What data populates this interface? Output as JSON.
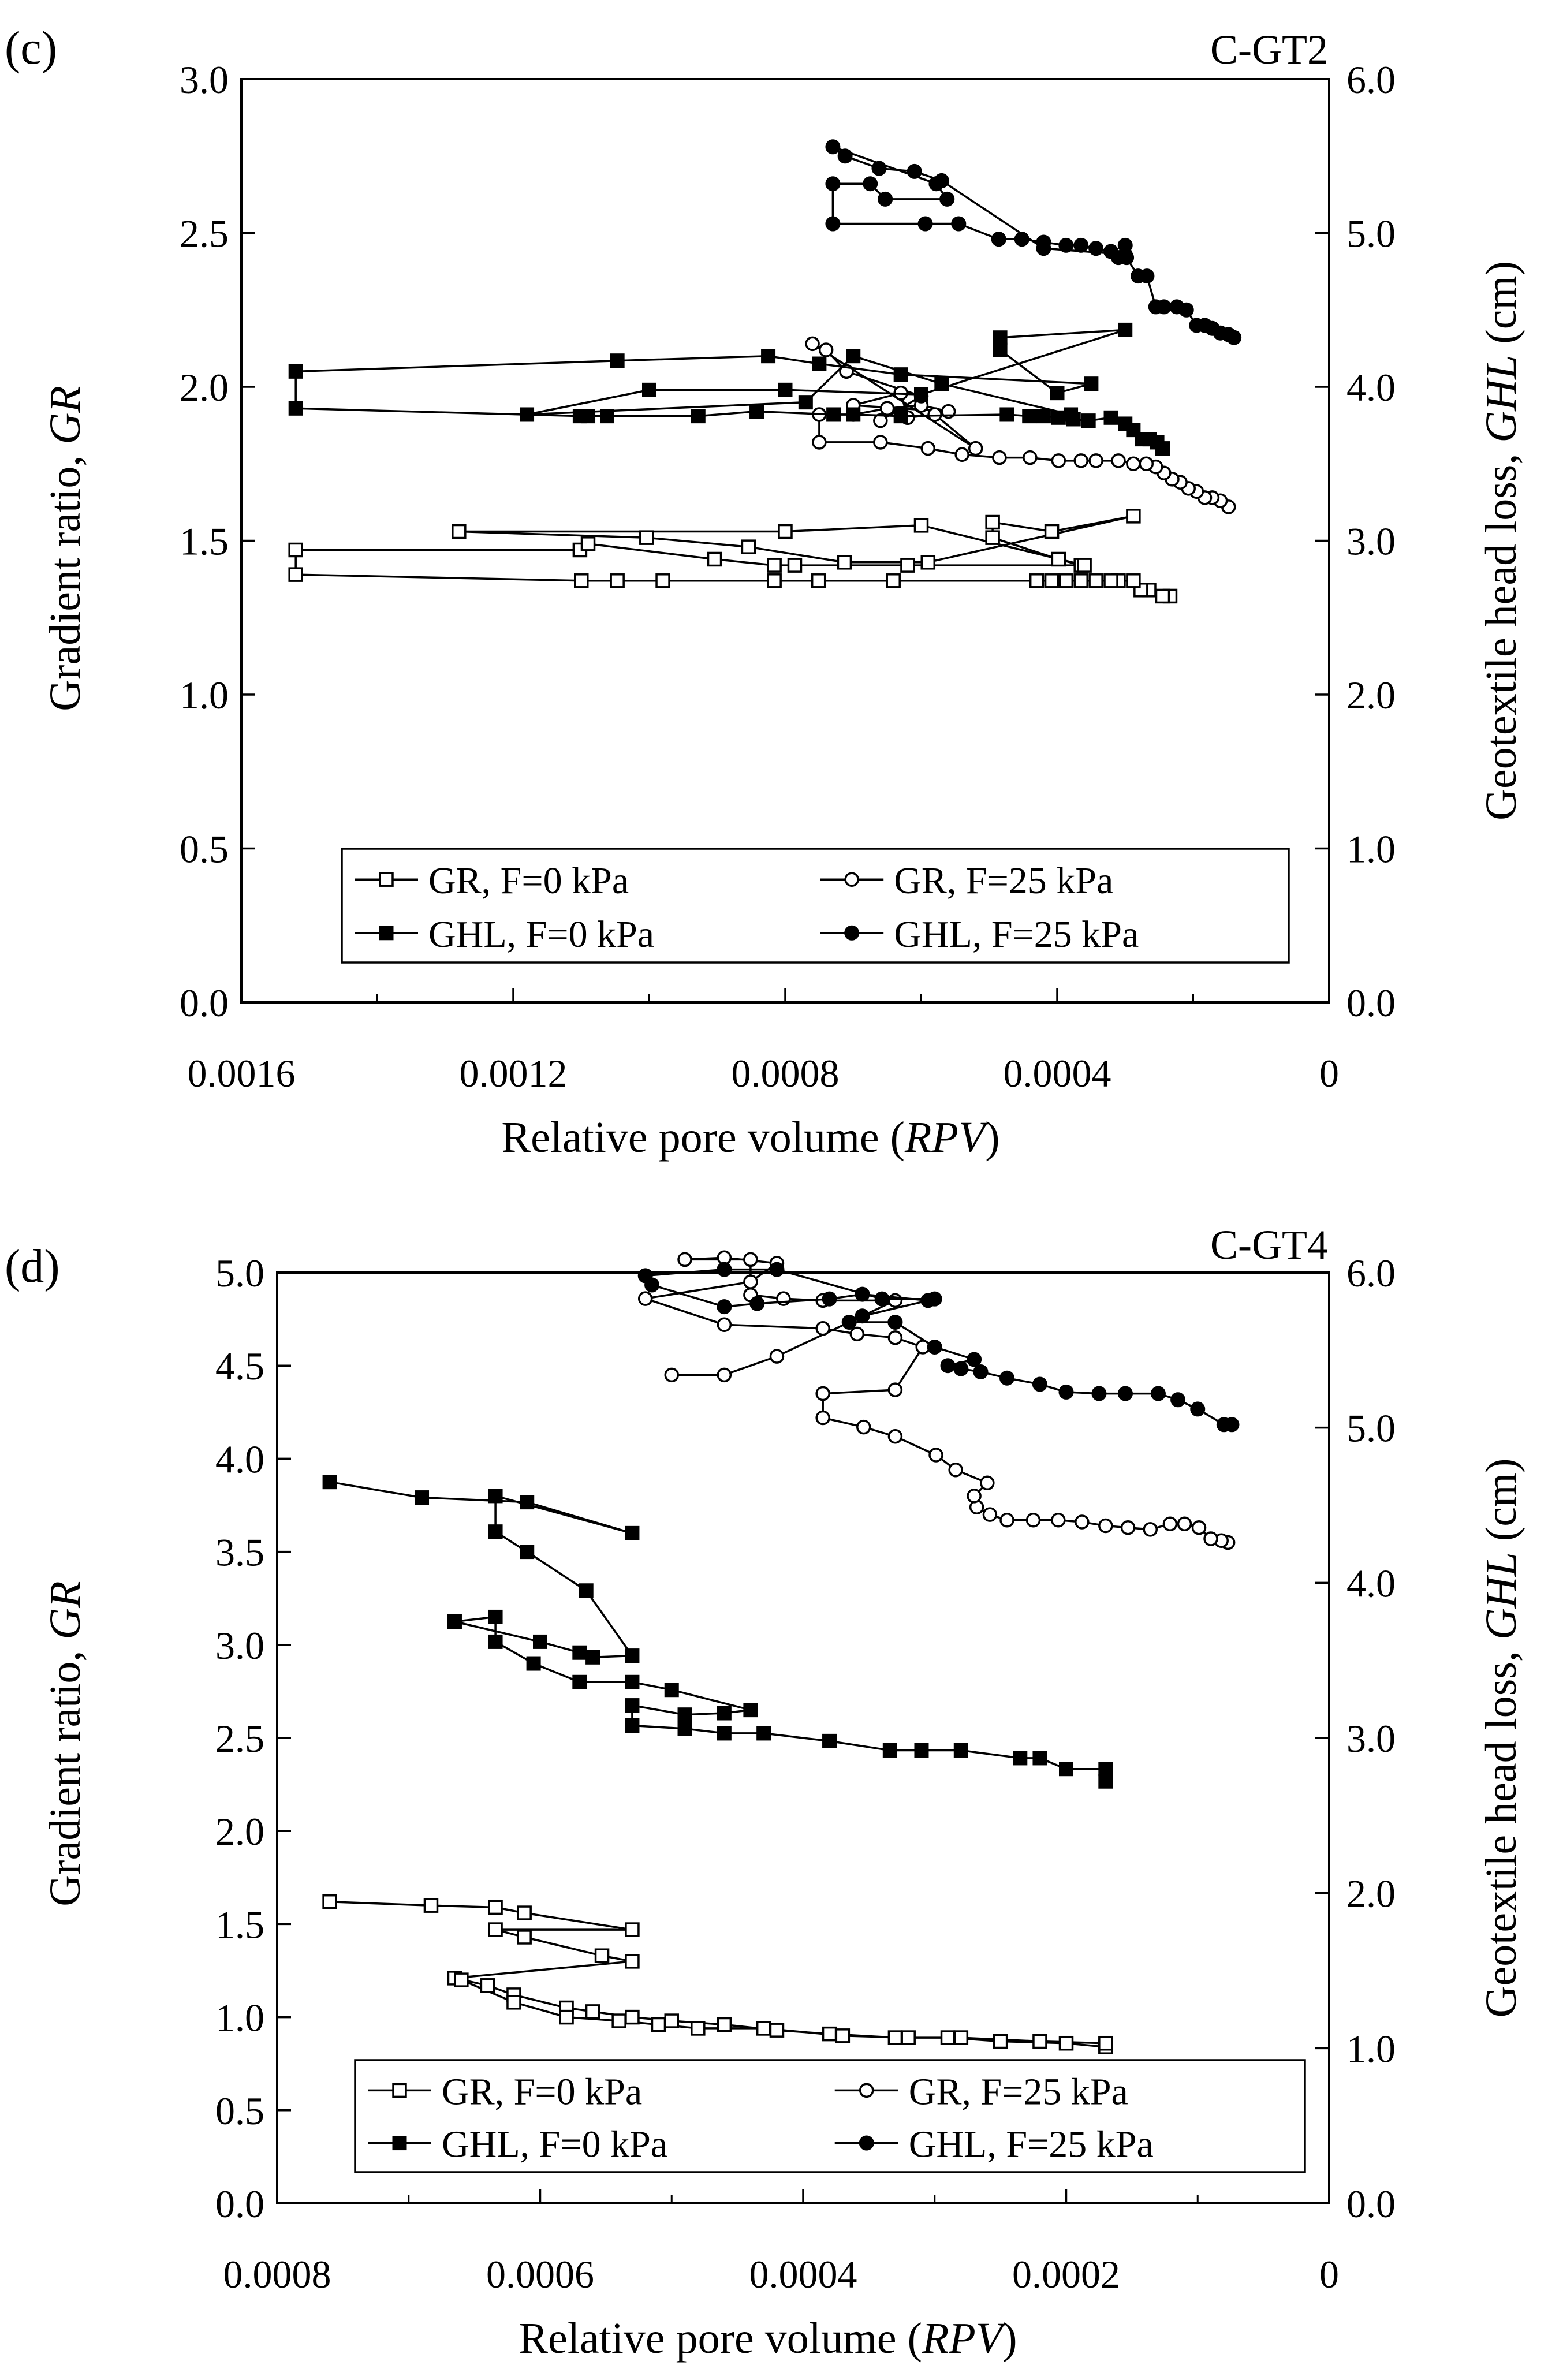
{
  "chart_data": [
    {
      "panel_label": "(c)",
      "type": "line",
      "specimen": "C-GT2",
      "xlabel_main": "Relative pore volume (",
      "xlabel_italic": "RPV",
      "xlabel_close": ")",
      "ylabel_main": "Gradient ratio, ",
      "ylabel_italic": "GR",
      "y2label_main": "Geotextile head loss, ",
      "y2label_italic": "GHL",
      "y2label_unit": " (cm)",
      "xlim": [
        0.0016,
        0
      ],
      "ylim": [
        0,
        3.0
      ],
      "y2lim": [
        0,
        6.0
      ],
      "x_ticks": [
        "0.0016",
        "0.0012",
        "0.0008",
        "0.0004",
        "0"
      ],
      "x_tick_values": [
        0.0016,
        0.0012,
        0.0008,
        0.0004,
        0
      ],
      "y_ticks": [
        "0.0",
        "0.5",
        "1.0",
        "1.5",
        "2.0",
        "2.5",
        "3.0"
      ],
      "y_tick_values": [
        0,
        0.5,
        1.0,
        1.5,
        2.0,
        2.5,
        3.0
      ],
      "y2_ticks": [
        "0.0",
        "1.0",
        "2.0",
        "3.0",
        "4.0",
        "5.0",
        "6.0"
      ],
      "y2_tick_values": [
        0,
        1.0,
        2.0,
        3.0,
        4.0,
        5.0,
        6.0
      ],
      "legend": [
        "GR, F=0 kPa",
        "GR, F=25 kPa",
        "GHL, F=0 kPa",
        "GHL, F=25 kPa"
      ],
      "series": [
        {
          "name": "GR, F=0 kPa",
          "axis": "left",
          "marker": "square-open",
          "x": [
            0.000234,
            0.000245,
            0.000265,
            0.000277,
            0.000288,
            0.00031,
            0.000321,
            0.000343,
            0.000365,
            0.000387,
            0.000408,
            0.00043,
            0.000641,
            0.000751,
            0.000816,
            0.00098,
            0.001047,
            0.0011,
            0.00152,
            0.00152,
            0.001102,
            0.00109,
            0.000904,
            0.000816,
            0.000786,
            0.00062,
            0.000365,
            0.000398,
            0.000495,
            0.000495,
            0.000408,
            0.000288,
            0.00059,
            0.000713,
            0.000854,
            0.001004,
            0.00128,
            0.0008,
            0.0006,
            0.00036
          ],
          "y": [
            1.32,
            1.32,
            1.34,
            1.34,
            1.37,
            1.37,
            1.37,
            1.37,
            1.37,
            1.37,
            1.37,
            1.37,
            1.37,
            1.37,
            1.37,
            1.37,
            1.37,
            1.37,
            1.39,
            1.47,
            1.47,
            1.49,
            1.44,
            1.42,
            1.42,
            1.42,
            1.42,
            1.44,
            1.51,
            1.56,
            1.53,
            1.58,
            1.43,
            1.43,
            1.48,
            1.51,
            1.53,
            1.53,
            1.55,
            1.42
          ]
        },
        {
          "name": "GR, F=25 kPa",
          "axis": "left",
          "marker": "circle-open",
          "x": [
            0.000148,
            0.00016,
            0.000172,
            0.000183,
            0.000195,
            0.000207,
            0.000219,
            0.000231,
            0.000243,
            0.000255,
            0.000269,
            0.000288,
            0.00031,
            0.000343,
            0.000365,
            0.000398,
            0.00044,
            0.000485,
            0.00054,
            0.00059,
            0.00066,
            0.00075,
            0.00075,
            0.0007,
            0.00065,
            0.0006,
            0.00056,
            0.0007,
            0.00063,
            0.00062,
            0.00058,
            0.00052,
            0.00076,
            0.00074,
            0.00071,
            0.0006,
            0.00066
          ],
          "y": [
            1.61,
            1.63,
            1.64,
            1.64,
            1.66,
            1.67,
            1.69,
            1.7,
            1.72,
            1.74,
            1.75,
            1.75,
            1.76,
            1.76,
            1.76,
            1.76,
            1.77,
            1.77,
            1.78,
            1.8,
            1.82,
            1.82,
            1.91,
            1.91,
            1.93,
            1.94,
            1.92,
            1.94,
            1.98,
            1.9,
            1.91,
            1.8,
            2.14,
            2.12,
            2.05,
            1.97,
            1.89
          ]
        },
        {
          "name": "GHL, F=0 kPa",
          "axis": "right",
          "marker": "square-filled",
          "x": [
            0.000245,
            0.000253,
            0.000264,
            0.000275,
            0.000288,
            0.0003,
            0.000321,
            0.000354,
            0.000376,
            0.000398,
            0.00042,
            0.000441,
            0.000474,
            0.00063,
            0.0007,
            0.000729,
            0.000842,
            0.000928,
            0.001062,
            0.00109,
            0.001102,
            0.00152,
            0.00152,
            0.001047,
            0.000825,
            0.00075,
            0.00063,
            0.00035,
            0.0004,
            0.000484,
            0.000484,
            0.0003,
            0.0006,
            0.0008,
            0.001,
            0.00118,
            0.00077,
            0.0007,
            0.00057,
            0.00038
          ],
          "y": [
            3.6,
            3.64,
            3.66,
            3.66,
            3.72,
            3.76,
            3.8,
            3.78,
            3.79,
            3.8,
            3.81,
            3.81,
            3.82,
            3.81,
            3.82,
            3.82,
            3.84,
            3.81,
            3.81,
            3.81,
            3.81,
            3.86,
            4.1,
            4.17,
            4.2,
            4.15,
            4.08,
            4.02,
            3.96,
            4.24,
            4.32,
            4.37,
            3.95,
            3.98,
            3.98,
            3.82,
            3.9,
            4.2,
            4.02,
            3.82
          ]
        },
        {
          "name": "GHL, F=25 kPa",
          "axis": "right",
          "marker": "circle-filled",
          "x": [
            0.00014,
            0.000148,
            0.00016,
            0.000172,
            0.000183,
            0.000195,
            0.00021,
            0.000224,
            0.000243,
            0.000255,
            0.000268,
            0.000281,
            0.000298,
            0.00031,
            0.000321,
            0.000343,
            0.000365,
            0.000387,
            0.00042,
            0.000452,
            0.000486,
            0.000545,
            0.000594,
            0.00073,
            0.00073,
            0.000675,
            0.000653,
            0.000562,
            0.000578,
            0.00073,
            0.000712,
            0.000662,
            0.00061,
            0.00057,
            0.00042,
            0.0003,
            0.0003
          ],
          "y": [
            4.32,
            4.34,
            4.35,
            4.38,
            4.4,
            4.4,
            4.5,
            4.52,
            4.52,
            4.52,
            4.72,
            4.72,
            4.84,
            4.84,
            4.88,
            4.9,
            4.92,
            4.92,
            4.94,
            4.96,
            4.96,
            5.06,
            5.06,
            5.06,
            5.32,
            5.32,
            5.22,
            5.22,
            5.32,
            5.56,
            5.5,
            5.42,
            5.4,
            5.34,
            4.9,
            4.86,
            4.92
          ]
        }
      ]
    },
    {
      "panel_label": "(d)",
      "type": "line",
      "specimen": "C-GT4",
      "xlabel_main": "Relative pore volume (",
      "xlabel_italic": "RPV",
      "xlabel_close": ")",
      "ylabel_main": "Gradient ratio, ",
      "ylabel_italic": "GR",
      "y2label_main": "Geotextile head loss, ",
      "y2label_italic": "GHL",
      "y2label_unit": " (cm)",
      "xlim": [
        0.0008,
        0
      ],
      "ylim": [
        0,
        5.0
      ],
      "y2lim": [
        0,
        6.0
      ],
      "x_ticks": [
        "0.0008",
        "0.0006",
        "0.0004",
        "0.0002",
        "0"
      ],
      "x_tick_values": [
        0.0008,
        0.0006,
        0.0004,
        0.0002,
        0
      ],
      "y_ticks": [
        "0.0",
        "0.5",
        "1.0",
        "1.5",
        "2.0",
        "2.5",
        "3.0",
        "3.5",
        "4.0",
        "4.5",
        "5.0"
      ],
      "y_tick_values": [
        0,
        0.5,
        1.0,
        1.5,
        2.0,
        2.5,
        3.0,
        3.5,
        4.0,
        4.5,
        5.0
      ],
      "y2_ticks": [
        "0.0",
        "1.0",
        "2.0",
        "3.0",
        "4.0",
        "5.0",
        "6.0"
      ],
      "y2_tick_values": [
        0,
        1.0,
        2.0,
        3.0,
        4.0,
        5.0,
        6.0
      ],
      "legend": [
        "GR, F=0 kPa",
        "GR, F=25 kPa",
        "GHL, F=0 kPa",
        "GHL, F=25 kPa"
      ],
      "series": [
        {
          "name": "GR, F=0 kPa",
          "axis": "left",
          "marker": "square-open",
          "x": [
            0.00076,
            0.000683,
            0.000634,
            0.000612,
            0.00053,
            0.000634,
            0.000612,
            0.000553,
            0.00053,
            0.000665,
            0.00064,
            0.00062,
            0.00058,
            0.00056,
            0.00053,
            0.0005,
            0.00046,
            0.00042,
            0.00038,
            0.00033,
            0.00029,
            0.00025,
            0.0002,
            0.00017,
            0.00017,
            0.00022,
            0.00028,
            0.00032,
            0.00037,
            0.00043,
            0.00048,
            0.00051,
            0.00054,
            0.00058,
            0.00062,
            0.00066
          ],
          "y": [
            1.62,
            1.6,
            1.59,
            1.56,
            1.47,
            1.47,
            1.43,
            1.33,
            1.3,
            1.21,
            1.17,
            1.12,
            1.05,
            1.03,
            1.0,
            0.98,
            0.96,
            0.93,
            0.91,
            0.89,
            0.89,
            0.87,
            0.86,
            0.84,
            0.86,
            0.87,
            0.89,
            0.89,
            0.9,
            0.94,
            0.94,
            0.96,
            0.98,
            1.0,
            1.08,
            1.2
          ]
        },
        {
          "name": "GR, F=25 kPa",
          "axis": "left",
          "marker": "circle-open",
          "x": [
            7.7e-05,
            8.2e-05,
            9e-05,
            9.9e-05,
            0.00011,
            0.000121,
            0.000136,
            0.000153,
            0.00017,
            0.000188,
            0.000206,
            0.000225,
            0.000245,
            0.000258,
            0.000268,
            0.00027,
            0.00026,
            0.000284,
            0.000299,
            0.00033,
            0.000354,
            0.000385,
            0.000385,
            0.00033,
            0.000309,
            0.00033,
            0.000359,
            0.000385,
            0.00046,
            0.00052,
            0.00044,
            0.00042,
            0.00046,
            0.00049,
            0.00044,
            0.00044,
            0.000415,
            0.000385,
            0.00033,
            0.00042,
            0.00046,
            0.0005
          ],
          "y": [
            3.55,
            3.56,
            3.57,
            3.63,
            3.65,
            3.65,
            3.62,
            3.63,
            3.64,
            3.66,
            3.67,
            3.67,
            3.67,
            3.7,
            3.74,
            3.8,
            3.87,
            3.94,
            4.02,
            4.12,
            4.17,
            4.22,
            4.35,
            4.37,
            4.6,
            4.65,
            4.67,
            4.7,
            4.72,
            4.86,
            4.95,
            5.05,
            5.08,
            5.07,
            5.07,
            4.88,
            4.86,
            4.85,
            4.85,
            4.55,
            4.45,
            4.45
          ]
        },
        {
          "name": "GHL, F=0 kPa",
          "axis": "right",
          "marker": "square-filled",
          "x": [
            0.00017,
            0.00017,
            0.0002,
            0.00022,
            0.000235,
            0.00028,
            0.00031,
            0.000334,
            0.00038,
            0.00043,
            0.00046,
            0.00049,
            0.00053,
            0.00053,
            0.00049,
            0.00046,
            0.00044,
            0.0005,
            0.00053,
            0.00057,
            0.000605,
            0.000634,
            0.000634,
            0.000665,
            0.0006,
            0.00057,
            0.00056,
            0.00053,
            0.000565,
            0.00061,
            0.000634,
            0.000634,
            0.00053,
            0.00061,
            0.00069,
            0.00076
          ],
          "y": [
            2.72,
            2.8,
            2.8,
            2.87,
            2.87,
            2.92,
            2.92,
            2.92,
            2.98,
            3.03,
            3.03,
            3.06,
            3.08,
            3.21,
            3.15,
            3.16,
            3.18,
            3.31,
            3.36,
            3.36,
            3.48,
            3.62,
            3.78,
            3.75,
            3.62,
            3.55,
            3.52,
            3.53,
            3.95,
            4.2,
            4.33,
            4.56,
            4.32,
            4.52,
            4.55,
            4.65
          ]
        },
        {
          "name": "GHL, F=25 kPa",
          "axis": "right",
          "marker": "circle-filled",
          "x": [
            7.4e-05,
            8e-05,
            0.0001,
            0.000115,
            0.00013,
            0.000155,
            0.000175,
            0.0002,
            0.00022,
            0.000245,
            0.000265,
            0.00028,
            0.00029,
            0.00027,
            0.0003,
            0.00033,
            0.000365,
            0.000355,
            0.000305,
            0.000355,
            0.00038,
            0.000435,
            0.00046,
            0.000515,
            0.00052,
            0.00046,
            0.00042,
            0.00034,
            0.0003
          ],
          "y": [
            5.02,
            5.02,
            5.12,
            5.18,
            5.22,
            5.22,
            5.22,
            5.23,
            5.28,
            5.32,
            5.36,
            5.38,
            5.4,
            5.44,
            5.52,
            5.68,
            5.68,
            5.72,
            5.82,
            5.86,
            5.83,
            5.8,
            5.78,
            5.92,
            5.98,
            6.02,
            6.02,
            5.83,
            5.83
          ]
        }
      ]
    }
  ]
}
